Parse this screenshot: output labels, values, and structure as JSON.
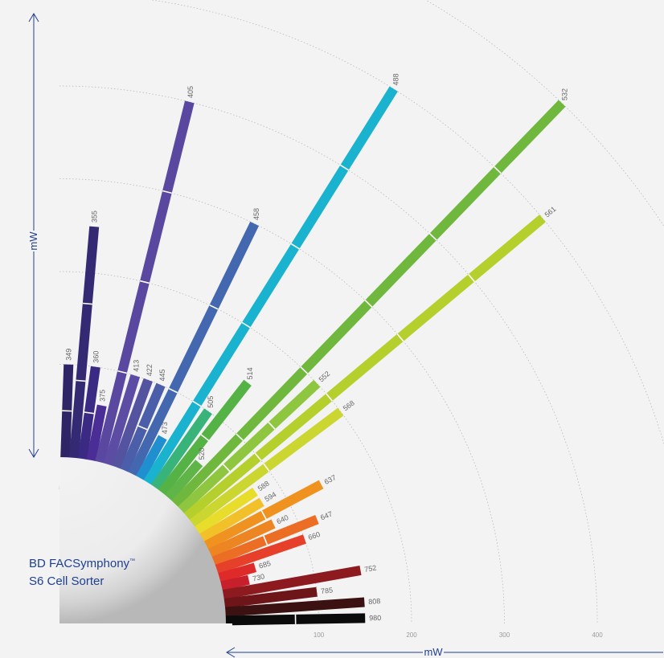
{
  "brand": {
    "line1": "BD FACSymphony",
    "trademark": "™",
    "line2": "S6 Cell Sorter"
  },
  "chart_data": {
    "type": "bar",
    "orientation": "radial",
    "xlabel": "mW",
    "ylabel": "mW",
    "x_ticks": [
      100,
      200,
      300,
      400
    ],
    "radial_gridlines": [
      100,
      200,
      300,
      400,
      500,
      600
    ],
    "lasers": [
      {
        "wavelength": "349",
        "power": 100,
        "segments": 2,
        "color": "#2e2566"
      },
      {
        "wavelength": "355",
        "power": 250,
        "segments": 3,
        "color": "#342a74"
      },
      {
        "wavelength": "360",
        "power": 100,
        "segments": 2,
        "color": "#3b2a84"
      },
      {
        "wavelength": "375",
        "power": 60,
        "segments": 1,
        "color": "#4a2d95"
      },
      {
        "wavelength": "405",
        "power": 400,
        "segments": 4,
        "color": "#5a48a0"
      },
      {
        "wavelength": "413",
        "power": 100,
        "segments": 1,
        "color": "#5c4ca4"
      },
      {
        "wavelength": "422",
        "power": 100,
        "segments": 1,
        "color": "#53539f"
      },
      {
        "wavelength": "445",
        "power": 100,
        "segments": 2,
        "color": "#4b5ea9"
      },
      {
        "wavelength": "458",
        "power": 300,
        "segments": 3,
        "color": "#4468b0"
      },
      {
        "wavelength": "473",
        "power": 50,
        "segments": 1,
        "color": "#1f8fd0"
      },
      {
        "wavelength": "488",
        "power": 500,
        "segments": 5,
        "color": "#19b2cf"
      },
      {
        "wavelength": "505",
        "power": 100,
        "segments": 1,
        "color": "#38b37a"
      },
      {
        "wavelength": "514",
        "power": 150,
        "segments": 2,
        "color": "#55b346"
      },
      {
        "wavelength": "520",
        "power": 50,
        "segments": 1,
        "color": "#5fb548"
      },
      {
        "wavelength": "532",
        "power": 600,
        "segments": 6,
        "color": "#6fb83d"
      },
      {
        "wavelength": "552",
        "power": 200,
        "segments": 3,
        "color": "#8ec63f"
      },
      {
        "wavelength": "561",
        "power": 500,
        "segments": 5,
        "color": "#b5cf2c"
      },
      {
        "wavelength": "568",
        "power": 200,
        "segments": 2,
        "color": "#cbd631"
      },
      {
        "wavelength": "588",
        "power": 75,
        "segments": 1,
        "color": "#e8dd2b"
      },
      {
        "wavelength": "594",
        "power": 75,
        "segments": 1,
        "color": "#f2c12a"
      },
      {
        "wavelength": "637",
        "power": 140,
        "segments": 2,
        "color": "#f0921f"
      },
      {
        "wavelength": "640",
        "power": 75,
        "segments": 1,
        "color": "#ee8523"
      },
      {
        "wavelength": "647",
        "power": 120,
        "segments": 2,
        "color": "#ec6e25"
      },
      {
        "wavelength": "660",
        "power": 100,
        "segments": 1,
        "color": "#e6402a"
      },
      {
        "wavelength": "685",
        "power": 40,
        "segments": 1,
        "color": "#de2b2a"
      },
      {
        "wavelength": "730",
        "power": 30,
        "segments": 1,
        "color": "#c71f2b"
      },
      {
        "wavelength": "752",
        "power": 150,
        "segments": 1,
        "color": "#8c1a1f"
      },
      {
        "wavelength": "785",
        "power": 100,
        "segments": 1,
        "color": "#6d1518"
      },
      {
        "wavelength": "808",
        "power": 150,
        "segments": 1,
        "color": "#3b1111"
      },
      {
        "wavelength": "980",
        "power": 150,
        "segments": 2,
        "color": "#0c0b0b"
      }
    ]
  }
}
